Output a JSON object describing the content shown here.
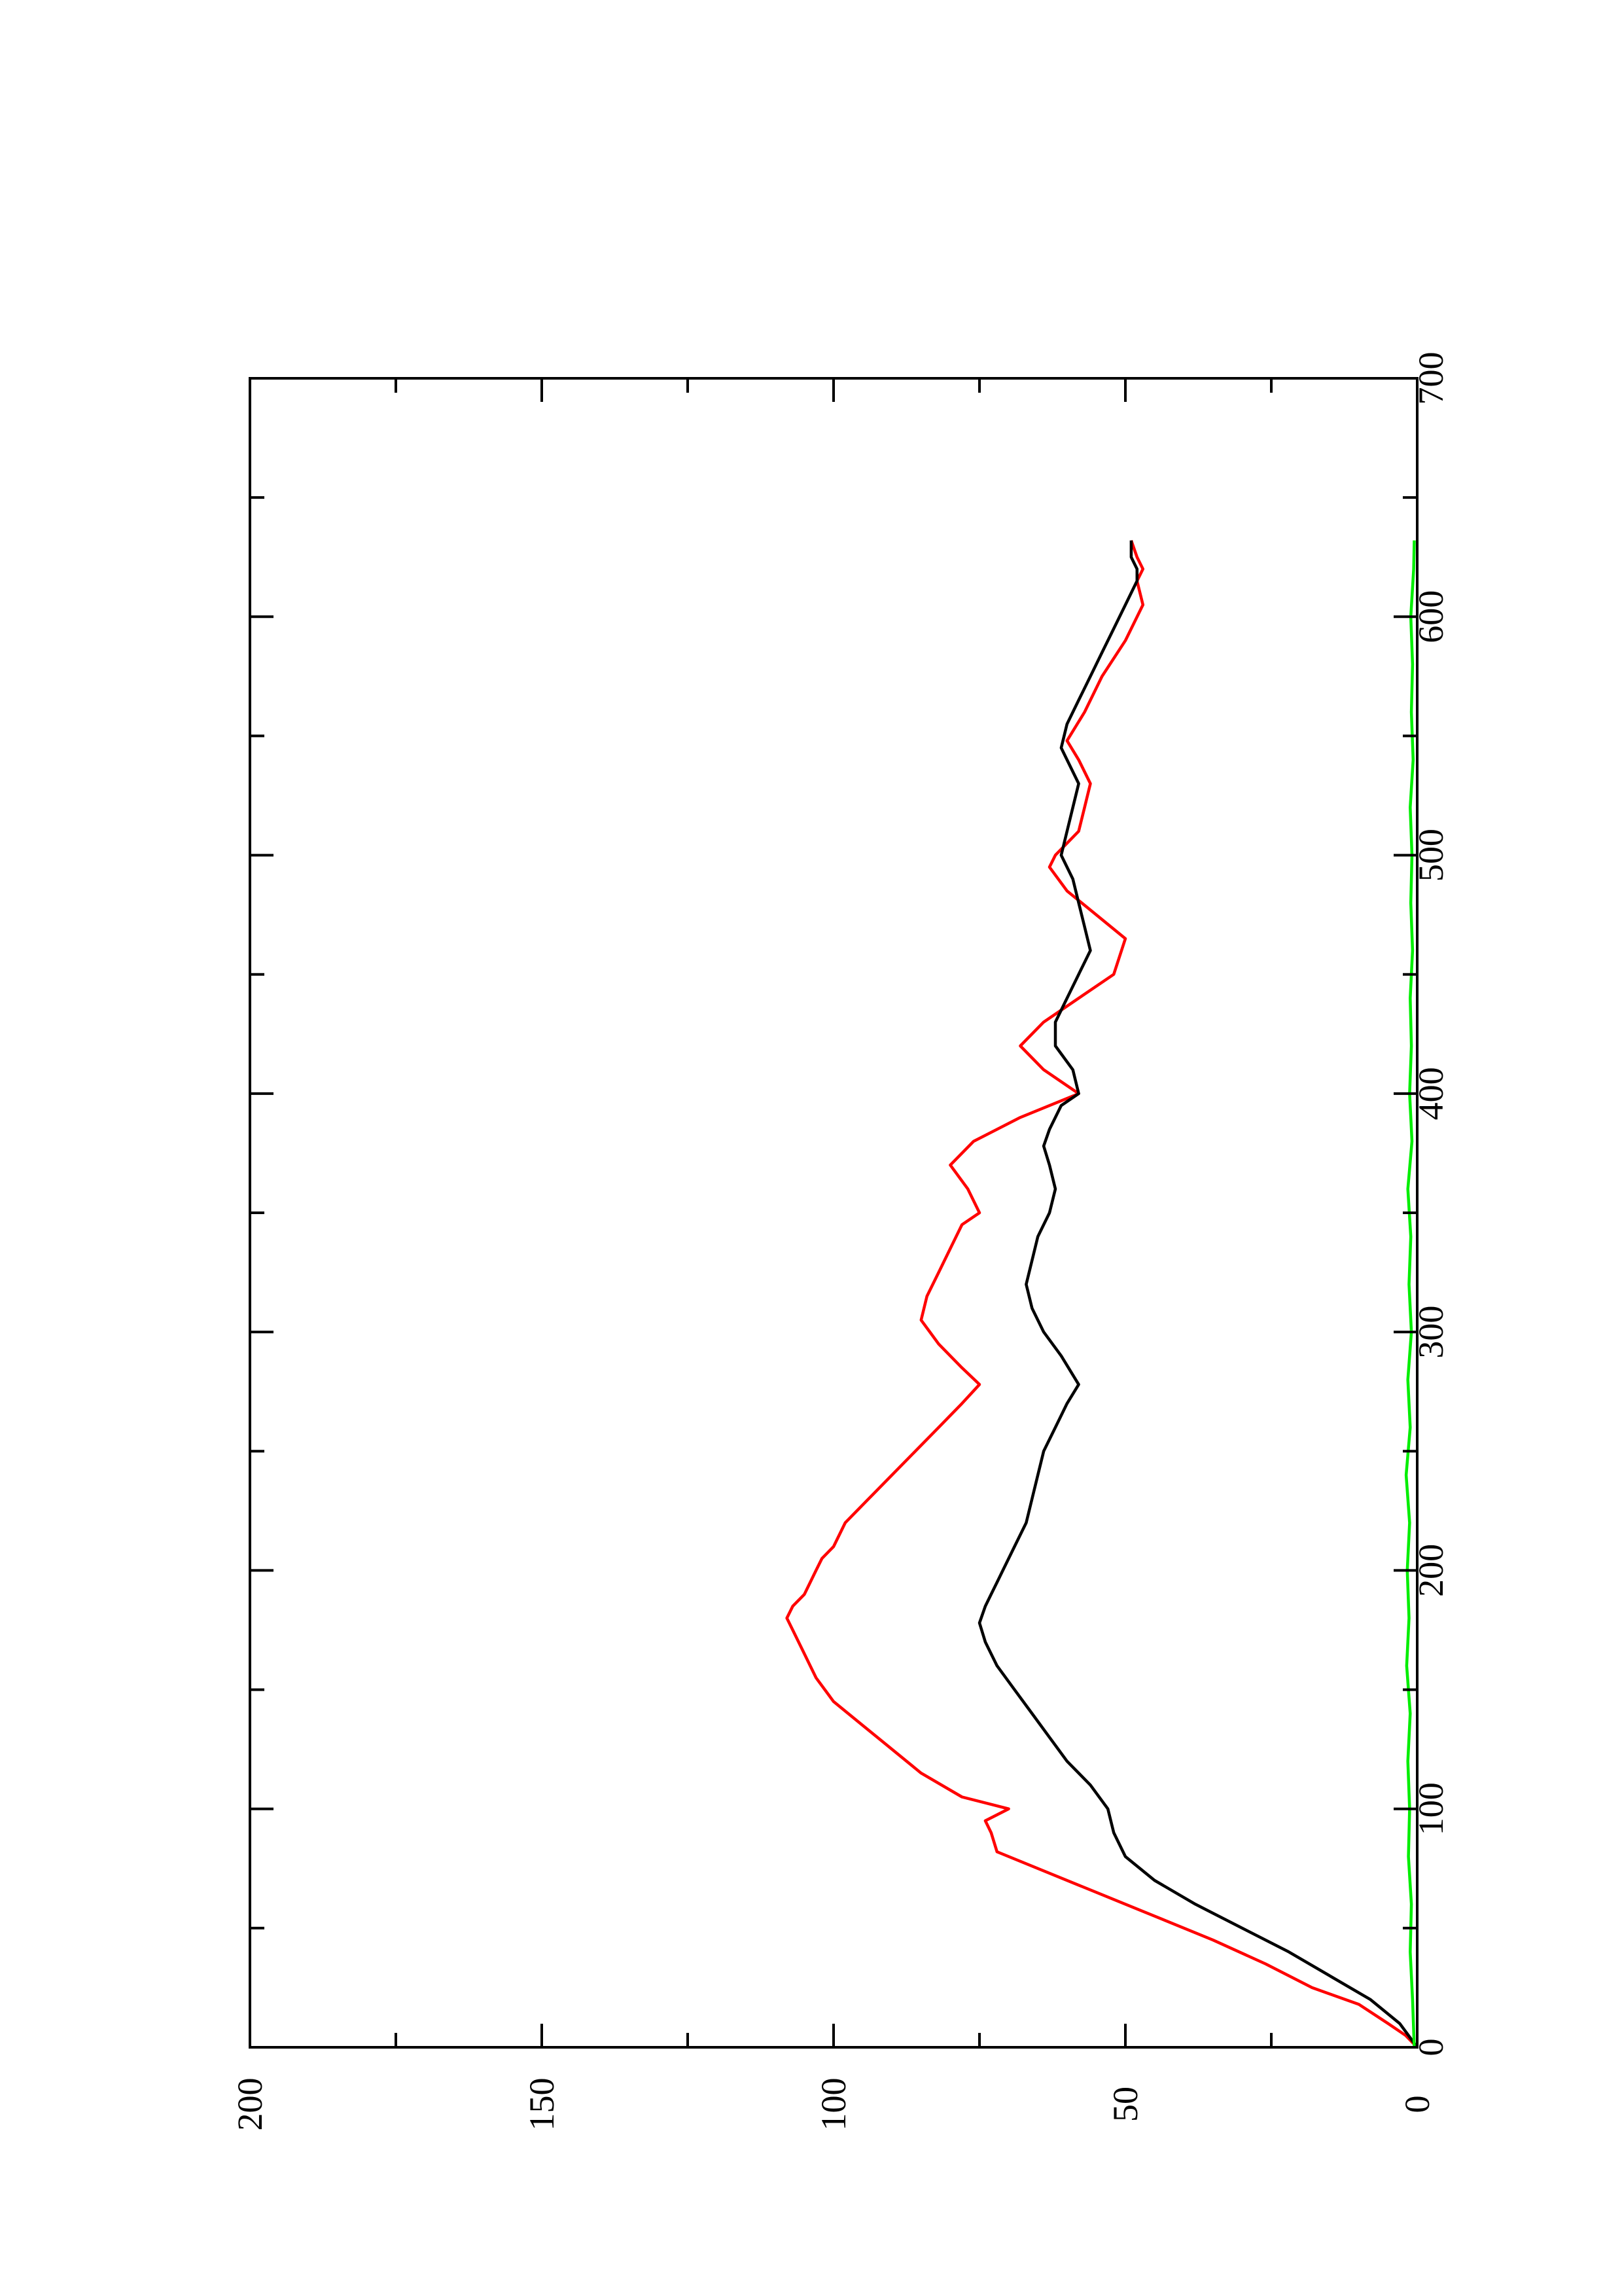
{
  "chart_data": {
    "type": "line",
    "orientation": "rotated-90-ccw",
    "title": "",
    "xlabel": "",
    "ylabel": "",
    "xlim": [
      0,
      700
    ],
    "ylim": [
      0,
      200
    ],
    "x_ticks": [
      0,
      100,
      200,
      300,
      400,
      500,
      600,
      700
    ],
    "y_ticks": [
      0,
      50,
      100,
      150,
      200
    ],
    "x_ticks_minor": [
      50,
      150,
      250,
      350,
      450,
      550,
      650
    ],
    "y_ticks_minor": [
      25,
      75,
      125,
      175
    ],
    "grid": false,
    "legend": "none",
    "series": [
      {
        "color": "#ff0000",
        "x": [
          0,
          5,
          10,
          18,
          25,
          35,
          45,
          55,
          65,
          75,
          82,
          90,
          95,
          100,
          105,
          115,
          125,
          135,
          145,
          155,
          165,
          175,
          180,
          185,
          190,
          195,
          200,
          205,
          210,
          220,
          230,
          240,
          250,
          260,
          270,
          278,
          285,
          295,
          305,
          315,
          325,
          335,
          345,
          350,
          360,
          370,
          380,
          390,
          400,
          410,
          420,
          430,
          440,
          450,
          465,
          475,
          485,
          495,
          500,
          510,
          520,
          530,
          540,
          548,
          560,
          575,
          590,
          605,
          615,
          620,
          625,
          632
        ],
        "y": [
          0,
          2,
          5,
          10,
          18,
          26,
          35,
          45,
          55,
          65,
          72,
          73,
          74,
          70,
          78,
          85,
          90,
          95,
          100,
          103,
          105,
          107,
          108,
          107,
          105,
          104,
          103,
          102,
          100,
          98,
          94,
          90,
          86,
          82,
          78,
          75,
          78,
          82,
          85,
          84,
          82,
          80,
          78,
          75,
          77,
          80,
          76,
          68,
          58,
          64,
          68,
          64,
          58,
          52,
          50,
          55,
          60,
          63,
          62,
          58,
          57,
          56,
          58,
          60,
          57,
          54,
          50,
          47,
          48,
          47,
          48,
          49
        ],
        "x_": null
      },
      {
        "color": "#000000",
        "x": [
          0,
          10,
          20,
          30,
          40,
          50,
          60,
          70,
          80,
          90,
          100,
          110,
          120,
          130,
          140,
          150,
          160,
          170,
          178,
          185,
          190,
          195,
          200,
          210,
          220,
          230,
          240,
          250,
          260,
          270,
          278,
          290,
          300,
          310,
          320,
          330,
          340,
          350,
          360,
          370,
          378,
          385,
          395,
          400,
          410,
          420,
          430,
          440,
          450,
          460,
          470,
          480,
          490,
          500,
          510,
          520,
          530,
          540,
          545,
          555,
          565,
          575,
          585,
          595,
          605,
          615,
          620,
          625,
          632
        ],
        "y": [
          0,
          3,
          8,
          15,
          22,
          30,
          38,
          45,
          50,
          52,
          53,
          56,
          60,
          63,
          66,
          69,
          72,
          74,
          75,
          74,
          73,
          72,
          71,
          69,
          67,
          66,
          65,
          64,
          62,
          60,
          58,
          61,
          64,
          66,
          67,
          66,
          65,
          63,
          62,
          63,
          64,
          63,
          61,
          58,
          59,
          62,
          62,
          60,
          58,
          56,
          57,
          58,
          59,
          61,
          60,
          59,
          58,
          60,
          61,
          60,
          58,
          56,
          54,
          52,
          50,
          48,
          48,
          49,
          49
        ]
      },
      {
        "color": "#00ee00",
        "x": [
          0,
          20,
          40,
          60,
          80,
          100,
          120,
          140,
          160,
          180,
          200,
          220,
          240,
          260,
          280,
          300,
          320,
          340,
          360,
          380,
          400,
          420,
          440,
          460,
          480,
          500,
          520,
          540,
          560,
          580,
          600,
          620,
          632
        ],
        "y": [
          0.5,
          0.8,
          1.2,
          1.0,
          1.5,
          1.3,
          1.6,
          1.2,
          1.8,
          1.4,
          1.7,
          1.3,
          1.9,
          1.2,
          1.6,
          1.0,
          1.4,
          1.1,
          1.6,
          0.9,
          1.3,
          1.0,
          1.2,
          0.8,
          1.1,
          0.9,
          1.2,
          0.7,
          1.0,
          0.8,
          1.1,
          0.6,
          0.5
        ]
      }
    ]
  }
}
